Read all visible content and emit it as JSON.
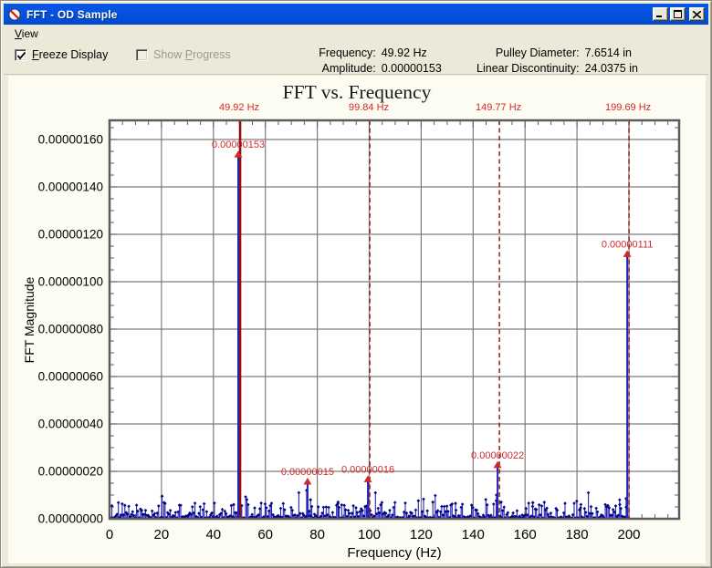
{
  "window": {
    "title": "FFT - OD Sample",
    "controls": [
      "minimize",
      "maximize",
      "close"
    ]
  },
  "menu": {
    "view": {
      "u": "V",
      "post": "iew"
    }
  },
  "toolbar": {
    "checkboxes": [
      {
        "pre": "",
        "u": "F",
        "post": "reeze Display",
        "checked": true,
        "enabled": true
      },
      {
        "pre": "Show ",
        "u": "P",
        "post": "rogress",
        "checked": false,
        "enabled": false
      }
    ],
    "readouts": [
      {
        "label": "Frequency:",
        "value": "49.92 Hz"
      },
      {
        "label": "Amplitude:",
        "value": "0.00000153"
      },
      {
        "label": "Pulley Diameter:",
        "value": "7.6514 in"
      },
      {
        "label": "Linear Discontinuity:",
        "value": "24.0375 in"
      }
    ]
  },
  "chart_data": {
    "type": "line",
    "title": "FFT vs. Frequency",
    "xlabel": "Frequency (Hz)",
    "ylabel": "FFT Magnitude",
    "xlim": [
      0,
      219.3
    ],
    "ylim": [
      0,
      1.68e-06
    ],
    "grid": true,
    "x_ticks": [
      0,
      20,
      40,
      60,
      80,
      100,
      120,
      140,
      160,
      180,
      200
    ],
    "x_tick_labels": [
      "0",
      "20",
      "40",
      "60",
      "80",
      "100",
      "120",
      "140",
      "160",
      "180",
      "200"
    ],
    "x_minor_step": 5,
    "y_major_step": 2e-07,
    "y_minor_step": 5e-08,
    "y_tick_labels": [
      "0.00000000",
      "0.00000020",
      "0.00000040",
      "0.00000060",
      "0.00000080",
      "0.00000100",
      "0.00000120",
      "0.00000140",
      "0.00000160"
    ],
    "harmonic_cursors": [
      {
        "freq": 49.92,
        "label": "49.92 Hz",
        "style": "solid"
      },
      {
        "freq": 99.84,
        "label": "99.84 Hz",
        "style": "dashed"
      },
      {
        "freq": 149.77,
        "label": "149.77 Hz",
        "style": "dashed"
      },
      {
        "freq": 199.69,
        "label": "199.69 Hz",
        "style": "dashed"
      }
    ],
    "peaks": [
      {
        "freq": 49.92,
        "value": 1.53e-06,
        "label": "0.00000153"
      },
      {
        "freq": 76.6,
        "value": 1.5e-07,
        "label": "0.00000015"
      },
      {
        "freq": 99.84,
        "value": 1.6e-07,
        "label": "0.00000016"
      },
      {
        "freq": 149.77,
        "value": 2.2e-07,
        "label": "0.00000022"
      },
      {
        "freq": 199.69,
        "value": 1.11e-06,
        "label": "0.00000111"
      }
    ],
    "secondary_spikes": [
      {
        "freq": 20.2,
        "value": 9.5e-08
      },
      {
        "freq": 47.8,
        "value": 6e-08
      },
      {
        "freq": 75.9,
        "value": 1.2e-07
      },
      {
        "freq": 77.4,
        "value": 8e-08
      },
      {
        "freq": 88.0,
        "value": 7e-08
      },
      {
        "freq": 124.5,
        "value": 7e-08
      },
      {
        "freq": 133.2,
        "value": 6.5e-08
      },
      {
        "freq": 149.0,
        "value": 1e-07
      },
      {
        "freq": 150.8,
        "value": 7e-08
      },
      {
        "freq": 163.0,
        "value": 6.8e-08
      },
      {
        "freq": 181.5,
        "value": 6e-08
      },
      {
        "freq": 196.5,
        "value": 6e-08
      },
      {
        "freq": 198.9,
        "value": 8.5e-08
      }
    ],
    "noise_floor": {
      "typical": 3e-08,
      "max": 1.1e-07,
      "density_hz": 0.5,
      "range": [
        0.4,
        199.7
      ],
      "seed": 1234
    },
    "legend": false,
    "colors": {
      "signal": "#2222bd",
      "marker": "#000080",
      "grid": "#7d7d7d",
      "frame": "#5c5c5c",
      "cursor": "#8f1010",
      "annotation": "#d22828",
      "plot_bg": "#ffffff"
    }
  }
}
